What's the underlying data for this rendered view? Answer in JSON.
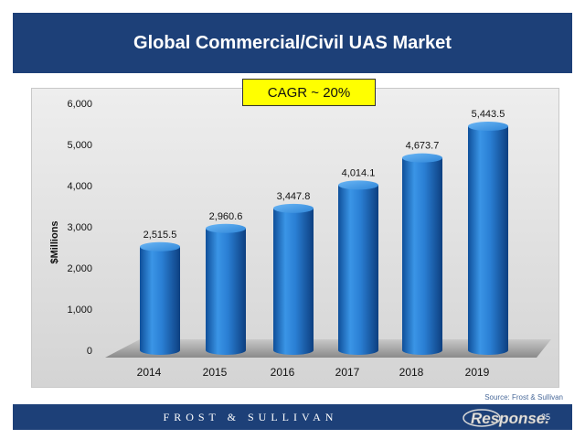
{
  "header": {
    "title": "Global Commercial/Civil UAS Market"
  },
  "annotation": {
    "cagr": "CAGR ~ 20%"
  },
  "source": "Source: Frost & Sullivan",
  "footer": {
    "brand": "FROST & SULLIVAN",
    "page": "35"
  },
  "watermark": {
    "text": "Response."
  },
  "colors": {
    "header_bg": "#1d4078",
    "bar": "#2a7fd4",
    "cagr_bg": "#ffff00"
  },
  "chart_data": {
    "type": "bar",
    "categories": [
      "2014",
      "2015",
      "2016",
      "2017",
      "2018",
      "2019"
    ],
    "values": [
      2515.5,
      2960.6,
      3447.8,
      4014.1,
      4673.7,
      5443.5
    ],
    "data_labels": [
      "2,515.5",
      "2,960.6",
      "3,447.8",
      "4,014.1",
      "4,673.7",
      "5,443.5"
    ],
    "ylabel": "$Millions",
    "xlabel": "",
    "ylim": [
      0,
      6000
    ],
    "yticks": [
      0,
      1000,
      2000,
      3000,
      4000,
      5000,
      6000
    ],
    "ytick_labels": [
      "0",
      "1,000",
      "2,000",
      "3,000",
      "4,000",
      "5,000",
      "6,000"
    ],
    "grid": false,
    "style": "3d-cylinder"
  }
}
